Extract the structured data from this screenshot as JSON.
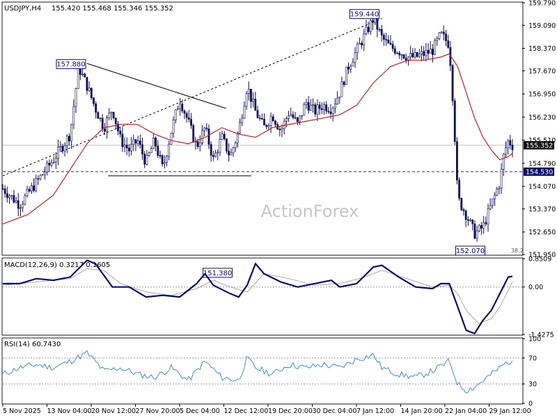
{
  "chart_data": {
    "type": "candlestick",
    "symbol": "USDJPY,H4",
    "ohlc_header": "155.420 155.468 155.346 155.352",
    "watermark": "ActionForex",
    "main_panel": {
      "y_axis_ticks": [
        "159.790",
        "159.090",
        "158.370",
        "157.670",
        "156.950",
        "156.230",
        "155.510",
        "154.790",
        "154.070",
        "153.370",
        "152.650",
        "151.950"
      ],
      "y_range": [
        151.95,
        159.79
      ],
      "current_price": "155.352",
      "support_level": "154.530",
      "fib_label": "38.2",
      "annotations": [
        {
          "label": "159.440",
          "value": 159.44
        },
        {
          "label": "157.880",
          "value": 157.88
        },
        {
          "label": "151.380",
          "value": 151.38
        },
        {
          "label": "152.070",
          "value": 152.07
        }
      ],
      "price_path": [
        {
          "x": 0,
          "y": 154.0
        },
        {
          "x": 4,
          "y": 153.5
        },
        {
          "x": 8,
          "y": 154.2
        },
        {
          "x": 12,
          "y": 154.9
        },
        {
          "x": 16,
          "y": 155.7
        },
        {
          "x": 18,
          "y": 157.8
        },
        {
          "x": 20,
          "y": 157.2
        },
        {
          "x": 22,
          "y": 156.5
        },
        {
          "x": 24,
          "y": 155.9
        },
        {
          "x": 26,
          "y": 156.5
        },
        {
          "x": 28,
          "y": 155.5
        },
        {
          "x": 30,
          "y": 155.2
        },
        {
          "x": 32,
          "y": 155.5
        },
        {
          "x": 34,
          "y": 154.8
        },
        {
          "x": 36,
          "y": 155.5
        },
        {
          "x": 38,
          "y": 154.6
        },
        {
          "x": 40,
          "y": 155.8
        },
        {
          "x": 42,
          "y": 156.8
        },
        {
          "x": 44,
          "y": 156.1
        },
        {
          "x": 46,
          "y": 155.3
        },
        {
          "x": 48,
          "y": 155.9
        },
        {
          "x": 50,
          "y": 154.9
        },
        {
          "x": 52,
          "y": 155.6
        },
        {
          "x": 54,
          "y": 155.0
        },
        {
          "x": 56,
          "y": 155.8
        },
        {
          "x": 58,
          "y": 157.2
        },
        {
          "x": 60,
          "y": 156.4
        },
        {
          "x": 62,
          "y": 155.9
        },
        {
          "x": 64,
          "y": 156.3
        },
        {
          "x": 66,
          "y": 155.8
        },
        {
          "x": 68,
          "y": 156.4
        },
        {
          "x": 70,
          "y": 156.0
        },
        {
          "x": 72,
          "y": 156.7
        },
        {
          "x": 74,
          "y": 156.4
        },
        {
          "x": 76,
          "y": 156.6
        },
        {
          "x": 78,
          "y": 156.5
        },
        {
          "x": 80,
          "y": 157.0
        },
        {
          "x": 82,
          "y": 157.8
        },
        {
          "x": 84,
          "y": 158.3
        },
        {
          "x": 86,
          "y": 158.8
        },
        {
          "x": 88,
          "y": 159.3
        },
        {
          "x": 90,
          "y": 158.7
        },
        {
          "x": 92,
          "y": 158.4
        },
        {
          "x": 94,
          "y": 158.3
        },
        {
          "x": 96,
          "y": 158.1
        },
        {
          "x": 98,
          "y": 158.1
        },
        {
          "x": 100,
          "y": 158.2
        },
        {
          "x": 102,
          "y": 158.3
        },
        {
          "x": 104,
          "y": 158.8
        },
        {
          "x": 106,
          "y": 158.5
        },
        {
          "x": 107,
          "y": 156.5
        },
        {
          "x": 108,
          "y": 153.7
        },
        {
          "x": 110,
          "y": 153.2
        },
        {
          "x": 112,
          "y": 152.6
        },
        {
          "x": 114,
          "y": 152.8
        },
        {
          "x": 116,
          "y": 153.5
        },
        {
          "x": 118,
          "y": 154.2
        },
        {
          "x": 119,
          "y": 155.1
        },
        {
          "x": 120,
          "y": 155.5
        },
        {
          "x": 121,
          "y": 155.35
        }
      ],
      "ma_path": [
        {
          "x": 0,
          "y": 152.9
        },
        {
          "x": 6,
          "y": 153.2
        },
        {
          "x": 12,
          "y": 153.8
        },
        {
          "x": 16,
          "y": 154.6
        },
        {
          "x": 20,
          "y": 155.4
        },
        {
          "x": 24,
          "y": 155.9
        },
        {
          "x": 28,
          "y": 156.0
        },
        {
          "x": 32,
          "y": 156.0
        },
        {
          "x": 36,
          "y": 155.7
        },
        {
          "x": 40,
          "y": 155.5
        },
        {
          "x": 44,
          "y": 155.4
        },
        {
          "x": 48,
          "y": 155.6
        },
        {
          "x": 52,
          "y": 155.9
        },
        {
          "x": 56,
          "y": 155.7
        },
        {
          "x": 60,
          "y": 155.6
        },
        {
          "x": 64,
          "y": 155.9
        },
        {
          "x": 68,
          "y": 156.0
        },
        {
          "x": 72,
          "y": 156.1
        },
        {
          "x": 76,
          "y": 156.2
        },
        {
          "x": 80,
          "y": 156.3
        },
        {
          "x": 84,
          "y": 156.6
        },
        {
          "x": 88,
          "y": 157.3
        },
        {
          "x": 92,
          "y": 157.8
        },
        {
          "x": 96,
          "y": 158.0
        },
        {
          "x": 100,
          "y": 158.0
        },
        {
          "x": 104,
          "y": 158.1
        },
        {
          "x": 106,
          "y": 158.2
        },
        {
          "x": 108,
          "y": 157.8
        },
        {
          "x": 110,
          "y": 157.0
        },
        {
          "x": 112,
          "y": 156.2
        },
        {
          "x": 114,
          "y": 155.6
        },
        {
          "x": 116,
          "y": 155.2
        },
        {
          "x": 118,
          "y": 154.9
        },
        {
          "x": 120,
          "y": 155.0
        },
        {
          "x": 121,
          "y": 155.1
        }
      ],
      "trendlines": [
        {
          "from": {
            "x": 0,
            "y": 154.4
          },
          "to": {
            "x": 90,
            "y": 159.3
          },
          "style": "dashed"
        },
        {
          "from": {
            "x": 20,
            "y": 157.9
          },
          "to": {
            "x": 53,
            "y": 156.5
          },
          "style": "solid"
        },
        {
          "from": {
            "x": 25,
            "y": 154.4
          },
          "to": {
            "x": 59,
            "y": 154.4
          },
          "style": "solid"
        }
      ]
    },
    "macd_panel": {
      "label": "MACD(12,26,9) 0.3217 0.1605",
      "y_axis_ticks": [
        "0.8509",
        "0.00",
        "-1.4275"
      ],
      "y_range": [
        -1.4275,
        0.8509
      ],
      "macd_path": [
        {
          "x": 0,
          "y": 0.1
        },
        {
          "x": 4,
          "y": 0.1
        },
        {
          "x": 8,
          "y": 0.25
        },
        {
          "x": 12,
          "y": 0.2
        },
        {
          "x": 16,
          "y": 0.3
        },
        {
          "x": 20,
          "y": 0.8
        },
        {
          "x": 22,
          "y": 0.7
        },
        {
          "x": 26,
          "y": 0.0
        },
        {
          "x": 30,
          "y": 0.0
        },
        {
          "x": 34,
          "y": -0.3
        },
        {
          "x": 38,
          "y": -0.25
        },
        {
          "x": 42,
          "y": -0.3
        },
        {
          "x": 46,
          "y": 0.1
        },
        {
          "x": 48,
          "y": 0.4
        },
        {
          "x": 50,
          "y": 0.05
        },
        {
          "x": 54,
          "y": -0.2
        },
        {
          "x": 56,
          "y": -0.3
        },
        {
          "x": 58,
          "y": 0.05
        },
        {
          "x": 60,
          "y": 0.7
        },
        {
          "x": 62,
          "y": 0.4
        },
        {
          "x": 66,
          "y": 0.15
        },
        {
          "x": 70,
          "y": 0.0
        },
        {
          "x": 74,
          "y": 0.1
        },
        {
          "x": 78,
          "y": 0.2
        },
        {
          "x": 80,
          "y": 0.0
        },
        {
          "x": 84,
          "y": 0.1
        },
        {
          "x": 88,
          "y": 0.6
        },
        {
          "x": 90,
          "y": 0.65
        },
        {
          "x": 94,
          "y": 0.3
        },
        {
          "x": 98,
          "y": 0.0
        },
        {
          "x": 102,
          "y": -0.05
        },
        {
          "x": 104,
          "y": 0.1
        },
        {
          "x": 106,
          "y": 0.1
        },
        {
          "x": 108,
          "y": -0.6
        },
        {
          "x": 110,
          "y": -1.3
        },
        {
          "x": 112,
          "y": -1.4
        },
        {
          "x": 114,
          "y": -1.0
        },
        {
          "x": 116,
          "y": -0.7
        },
        {
          "x": 118,
          "y": -0.2
        },
        {
          "x": 120,
          "y": 0.3
        },
        {
          "x": 121,
          "y": 0.32
        }
      ],
      "signal_path": [
        {
          "x": 0,
          "y": 0.05
        },
        {
          "x": 8,
          "y": 0.15
        },
        {
          "x": 16,
          "y": 0.25
        },
        {
          "x": 20,
          "y": 0.55
        },
        {
          "x": 24,
          "y": 0.5
        },
        {
          "x": 28,
          "y": 0.1
        },
        {
          "x": 34,
          "y": -0.15
        },
        {
          "x": 40,
          "y": -0.25
        },
        {
          "x": 46,
          "y": -0.05
        },
        {
          "x": 50,
          "y": 0.2
        },
        {
          "x": 54,
          "y": 0.0
        },
        {
          "x": 58,
          "y": -0.15
        },
        {
          "x": 62,
          "y": 0.4
        },
        {
          "x": 68,
          "y": 0.25
        },
        {
          "x": 74,
          "y": 0.05
        },
        {
          "x": 80,
          "y": 0.1
        },
        {
          "x": 86,
          "y": 0.3
        },
        {
          "x": 90,
          "y": 0.5
        },
        {
          "x": 96,
          "y": 0.25
        },
        {
          "x": 102,
          "y": 0.0
        },
        {
          "x": 106,
          "y": 0.05
        },
        {
          "x": 108,
          "y": -0.2
        },
        {
          "x": 110,
          "y": -0.7
        },
        {
          "x": 113,
          "y": -1.1
        },
        {
          "x": 116,
          "y": -0.95
        },
        {
          "x": 118,
          "y": -0.6
        },
        {
          "x": 120,
          "y": -0.1
        },
        {
          "x": 121,
          "y": 0.16
        }
      ]
    },
    "rsi_panel": {
      "label": "RSI(14) 60.7430",
      "y_axis_ticks": [
        "100",
        "70",
        "30",
        "0"
      ],
      "y_range": [
        0,
        100
      ],
      "levels": [
        70,
        30
      ],
      "rsi_path": [
        {
          "x": 0,
          "y": 45
        },
        {
          "x": 4,
          "y": 55
        },
        {
          "x": 8,
          "y": 60
        },
        {
          "x": 12,
          "y": 55
        },
        {
          "x": 16,
          "y": 65
        },
        {
          "x": 20,
          "y": 78
        },
        {
          "x": 24,
          "y": 50
        },
        {
          "x": 28,
          "y": 55
        },
        {
          "x": 32,
          "y": 45
        },
        {
          "x": 36,
          "y": 40
        },
        {
          "x": 40,
          "y": 55
        },
        {
          "x": 44,
          "y": 35
        },
        {
          "x": 48,
          "y": 65
        },
        {
          "x": 52,
          "y": 40
        },
        {
          "x": 56,
          "y": 35
        },
        {
          "x": 58,
          "y": 70
        },
        {
          "x": 60,
          "y": 55
        },
        {
          "x": 64,
          "y": 45
        },
        {
          "x": 68,
          "y": 60
        },
        {
          "x": 72,
          "y": 55
        },
        {
          "x": 76,
          "y": 60
        },
        {
          "x": 80,
          "y": 55
        },
        {
          "x": 84,
          "y": 68
        },
        {
          "x": 88,
          "y": 75
        },
        {
          "x": 90,
          "y": 55
        },
        {
          "x": 94,
          "y": 45
        },
        {
          "x": 98,
          "y": 40
        },
        {
          "x": 102,
          "y": 50
        },
        {
          "x": 106,
          "y": 65
        },
        {
          "x": 108,
          "y": 30
        },
        {
          "x": 110,
          "y": 20
        },
        {
          "x": 112,
          "y": 25
        },
        {
          "x": 114,
          "y": 35
        },
        {
          "x": 116,
          "y": 45
        },
        {
          "x": 118,
          "y": 55
        },
        {
          "x": 120,
          "y": 65
        },
        {
          "x": 121,
          "y": 61
        }
      ]
    },
    "x_axis_labels": [
      "5 Nov 2025",
      "13 Nov 04:00",
      "20 Nov 12:00",
      "27 Nov 20:00",
      "5 Dec 04:00",
      "12 Dec 12:00",
      "19 Dec 20:00",
      "30 Dec 04:00",
      "7 Jan 12:00",
      "14 Jan 20:00",
      "22 Jan 04:00",
      "29 Jan 12:00"
    ],
    "colors": {
      "candle": "#0b0b5e",
      "ma": "#d81b1b",
      "macd": "#0b0b6e",
      "signal": "#a8a8a8",
      "rsi": "#3a8ee0",
      "label_border": "#0b0b8a",
      "label_text": "#0b0b8a",
      "tag_bg": "#0b0b6e",
      "watermark": "#c6c6c6"
    }
  }
}
